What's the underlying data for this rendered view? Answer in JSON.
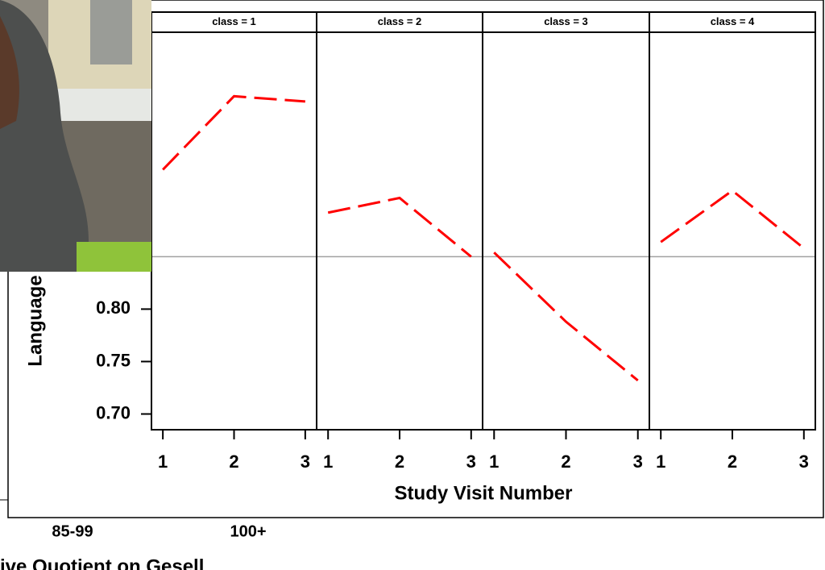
{
  "chart_data": [
    {
      "type": "line",
      "title": "class = 1",
      "x": [
        1,
        2,
        3
      ],
      "xticks": [
        1,
        2,
        3
      ],
      "xlim": [
        0.84,
        3.16
      ],
      "ylim": [
        0.685,
        1.064
      ],
      "yticks": [
        {
          "value": 0.7,
          "label": "0.70"
        },
        {
          "value": 0.75,
          "label": "0.75"
        },
        {
          "value": 0.8,
          "label": "0.80"
        }
      ],
      "reference_line": 0.85,
      "series": [
        {
          "color": "#ff0000",
          "values": [
            0.933,
            1.003,
            0.998
          ]
        }
      ]
    },
    {
      "type": "line",
      "title": "class = 2",
      "x": [
        1,
        2,
        3
      ],
      "xticks": [
        1,
        2,
        3
      ],
      "xlim": [
        0.84,
        3.16
      ],
      "ylim": [
        0.685,
        1.064
      ],
      "reference_line": 0.85,
      "series": [
        {
          "color": "#ff0000",
          "values": [
            0.892,
            0.906,
            0.85
          ]
        }
      ]
    },
    {
      "type": "line",
      "title": "class = 3",
      "x": [
        1,
        2,
        3
      ],
      "xticks": [
        1,
        2,
        3
      ],
      "xlim": [
        0.84,
        3.16
      ],
      "ylim": [
        0.685,
        1.064
      ],
      "reference_line": 0.85,
      "series": [
        {
          "color": "#ff0000",
          "values": [
            0.854,
            0.788,
            0.732
          ]
        }
      ]
    },
    {
      "type": "line",
      "title": "class = 4",
      "x": [
        1,
        2,
        3
      ],
      "xticks": [
        1,
        2,
        3
      ],
      "xlim": [
        0.84,
        3.16
      ],
      "ylim": [
        0.685,
        1.064
      ],
      "reference_line": 0.85,
      "series": [
        {
          "color": "#ff0000",
          "values": [
            0.864,
            0.913,
            0.858
          ]
        }
      ]
    }
  ],
  "figure": {
    "xlabel": "Study Visit Number",
    "ylabel": "Language"
  },
  "background": {
    "labels": [
      "85-99",
      "100+"
    ],
    "caption": "ive Quotient on Gesell"
  }
}
